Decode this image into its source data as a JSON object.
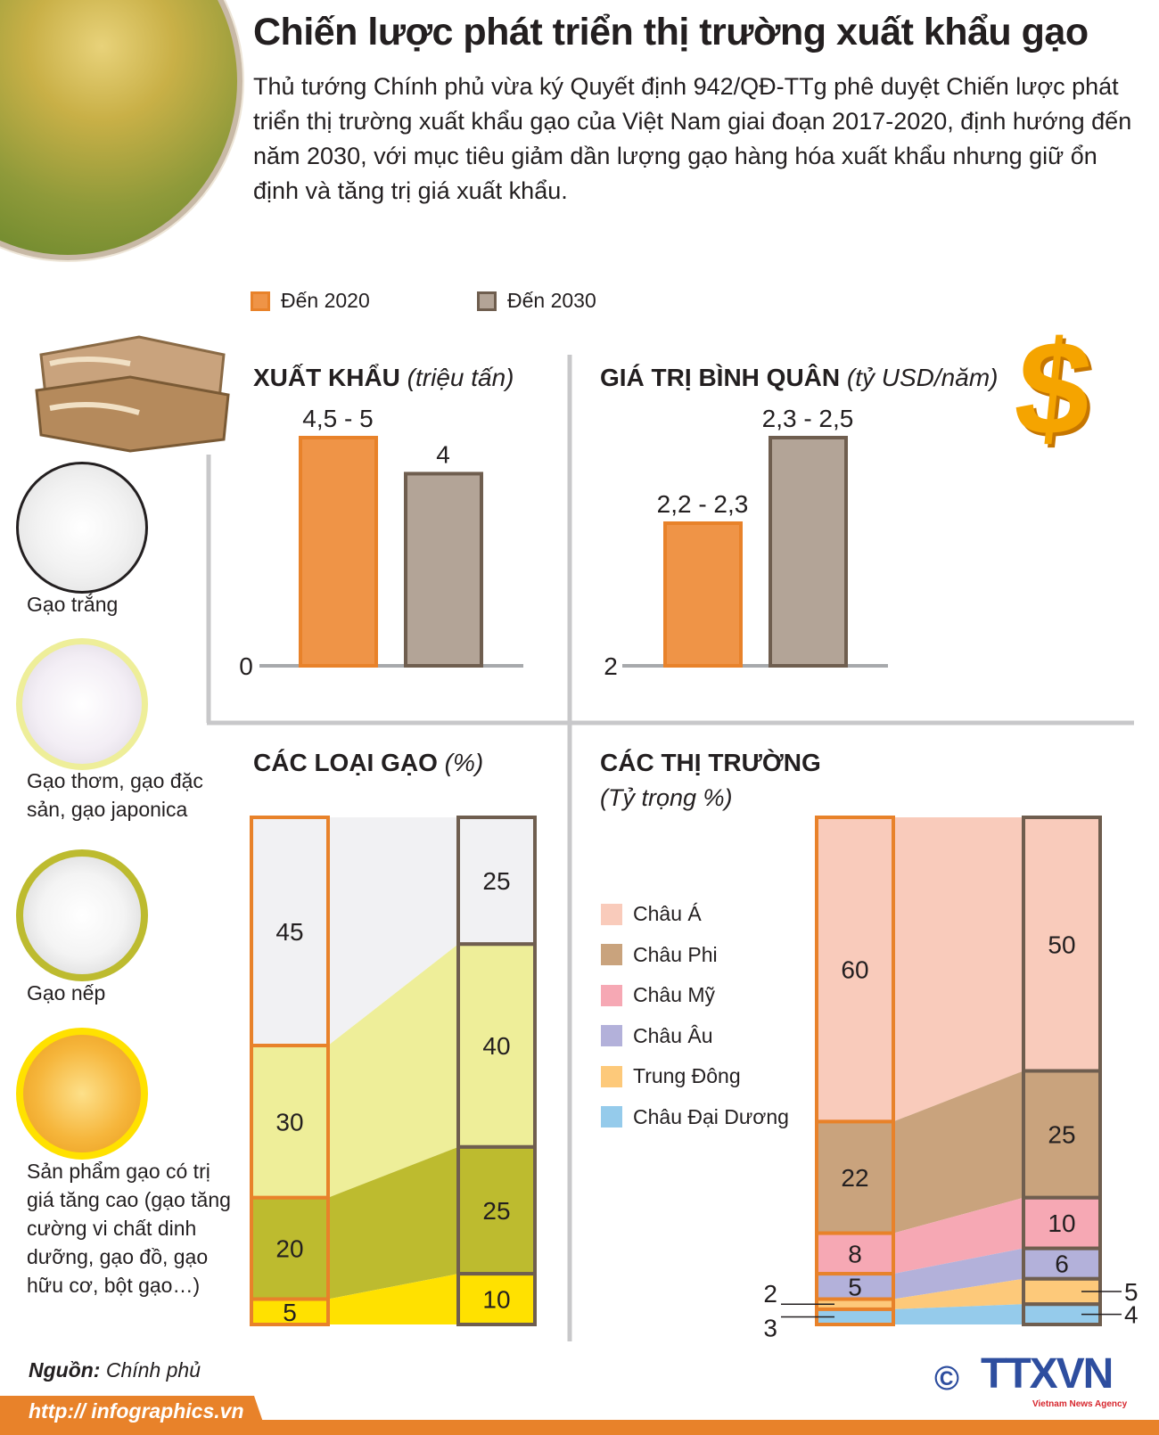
{
  "title": "Chiến lược phát triển thị trường xuất khẩu gạo",
  "intro": "Thủ tướng Chính phủ vừa ký Quyết định 942/QĐ-TTg phê duyệt Chiến lược phát triển thị trường xuất khẩu gạo của Việt Nam giai đoạn 2017-2020, định hướng đến năm 2030, với mục tiêu giảm dần lượng gạo hàng hóa xuất khẩu nhưng giữ ổn định và tăng trị giá xuất khẩu.",
  "legend": [
    {
      "label": "Đến 2020",
      "color": "#ef9447",
      "border": "#e8822a"
    },
    {
      "label": "Đến 2030",
      "color": "#b3a497",
      "border": "#6f5e4f"
    }
  ],
  "rice_types": [
    {
      "label": "Gạo trắng",
      "ring": "#231f20"
    },
    {
      "label": "Gạo thơm, gạo đặc sản, gạo japonica",
      "ring": "#eeee99"
    },
    {
      "label": "Gạo nếp",
      "ring": "#bdbb2f"
    },
    {
      "label": "Sản phẩm gạo có trị giá tăng cao (gạo tăng cường vi chất dinh dưỡng, gạo đồ, gạo hữu cơ, bột gạo…)",
      "ring": "#ffe100"
    }
  ],
  "chart_data": [
    {
      "type": "bar",
      "title": "XUẤT KHẨU",
      "unit": "(triệu tấn)",
      "categories": [
        "Đến 2020",
        "Đến 2030"
      ],
      "values": [
        4.75,
        4
      ],
      "labels": [
        "4,5 - 5",
        "4"
      ],
      "baseline_label": "0",
      "ylim": [
        0,
        5
      ]
    },
    {
      "type": "bar",
      "title": "GIÁ TRỊ BÌNH QUÂN",
      "unit": "(tỷ USD/năm)",
      "categories": [
        "Đến 2020",
        "Đến 2030"
      ],
      "values": [
        2.25,
        2.4
      ],
      "labels": [
        "2,2 - 2,3",
        "2,3 - 2,5"
      ],
      "baseline_label": "2",
      "ylim": [
        2,
        2.5
      ]
    },
    {
      "type": "stacked-bar",
      "title": "CÁC LOẠI GẠO",
      "unit": "(%)",
      "categories": [
        "Đến 2020",
        "Đến 2030"
      ],
      "series": [
        {
          "values": [
            45,
            25
          ],
          "color": "#f1f1f3"
        },
        {
          "values": [
            30,
            40
          ],
          "color": "#eeee99"
        },
        {
          "values": [
            20,
            25
          ],
          "color": "#bdbb2f"
        },
        {
          "values": [
            5,
            10
          ],
          "color": "#ffe100"
        }
      ]
    },
    {
      "type": "stacked-bar",
      "title": "CÁC THỊ TRƯỜNG",
      "unit": "(Tỷ trọng %)",
      "categories": [
        "Đến 2020",
        "Đến 2030"
      ],
      "series": [
        {
          "name": "Châu Á",
          "values": [
            60,
            50
          ],
          "color": "#f9cbbb"
        },
        {
          "name": "Châu Phi",
          "values": [
            22,
            25
          ],
          "color": "#c9a37d"
        },
        {
          "name": "Châu Mỹ",
          "values": [
            8,
            10
          ],
          "color": "#f6a8b4"
        },
        {
          "name": "Châu Âu",
          "values": [
            5,
            6
          ],
          "color": "#b3b1da"
        },
        {
          "name": "Trung Đông",
          "values": [
            2,
            5
          ],
          "color": "#fdc97a"
        },
        {
          "name": "Châu Đại Dương",
          "values": [
            3,
            4
          ],
          "color": "#95cbeb"
        }
      ]
    }
  ],
  "source_label": "Nguồn:",
  "source": "Chính phủ",
  "website": "http:// infographics.vn",
  "logo": {
    "copyright": "©",
    "text": "TTXVN",
    "tagline": "Vietnam News Agency"
  }
}
